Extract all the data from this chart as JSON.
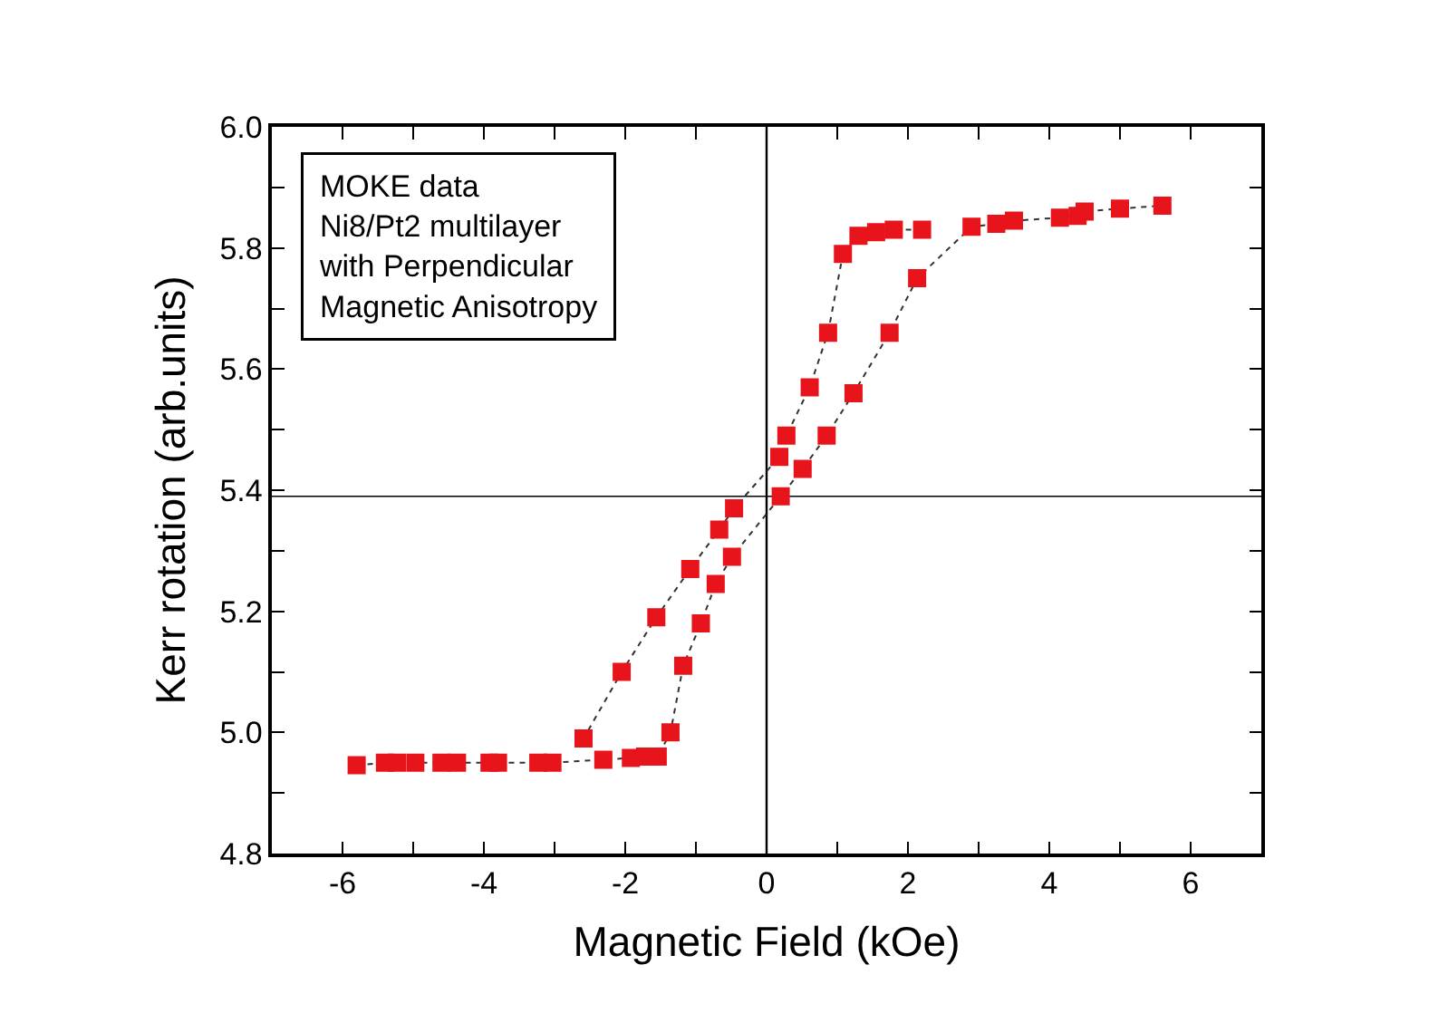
{
  "chart_data": {
    "type": "line",
    "xlabel": "Magnetic Field (kOe)",
    "ylabel": "Kerr rotation (arb.units)",
    "annotations": [
      "MOKE data\nNi8/Pt2 multilayer\nwith Perpendicular\nMagnetic Anisotropy"
    ],
    "series": [
      {
        "color": "#e8141b",
        "x": [
          -5.8,
          -5.4,
          -5.23,
          -4.97,
          -4.6,
          -4.38,
          -3.92,
          -3.8,
          -3.23,
          -3.03,
          -2.31,
          -1.92,
          -1.72,
          -1.54,
          -1.36,
          -1.18,
          -0.93,
          -0.72,
          -0.49,
          0.2,
          0.51,
          0.85,
          1.23,
          1.74,
          2.13,
          2.9,
          3.25,
          3.5,
          4.15,
          4.4,
          4.5,
          5.0,
          5.6
        ],
        "values": [
          4.946,
          4.95,
          4.95,
          4.95,
          4.95,
          4.95,
          4.95,
          4.95,
          4.95,
          4.95,
          4.955,
          4.958,
          4.96,
          4.96,
          5.0,
          5.11,
          5.18,
          5.245,
          5.29,
          5.39,
          5.435,
          5.49,
          5.56,
          5.66,
          5.75,
          5.835,
          5.84,
          5.845,
          5.85,
          5.853,
          5.86,
          5.865,
          5.87
        ]
      },
      {
        "color": "#e8141b",
        "x": [
          2.2,
          1.8,
          1.55,
          1.3,
          1.08,
          0.87,
          0.61,
          0.28,
          0.18,
          -0.46,
          -0.67,
          -1.08,
          -1.56,
          -2.05,
          -2.59
        ],
        "values": [
          5.83,
          5.83,
          5.826,
          5.82,
          5.79,
          5.66,
          5.57,
          5.49,
          5.455,
          5.37,
          5.335,
          5.27,
          5.19,
          5.1,
          4.99
        ]
      }
    ],
    "marker": "square",
    "line_style": "dotted",
    "grid": false,
    "xlim": [
      -7,
      7
    ],
    "xticks": [
      -6,
      {
        "value": -5,
        "label": null
      },
      -4,
      {
        "value": -3,
        "label": null
      },
      -2,
      {
        "value": -1,
        "label": null
      },
      0,
      {
        "value": 1,
        "label": null
      },
      2,
      {
        "value": 3,
        "label": null
      },
      4,
      {
        "value": 5,
        "label": null
      },
      6
    ],
    "ylim": [
      4.8,
      6.0
    ],
    "yticks": [
      {
        "value": 4.8,
        "label": "4.8"
      },
      {
        "value": 4.9,
        "label": null
      },
      {
        "value": 5.0,
        "label": "5.0"
      },
      {
        "value": 5.1,
        "label": null
      },
      {
        "value": 5.2,
        "label": "5.2"
      },
      {
        "value": 5.3,
        "label": null
      },
      {
        "value": 5.4,
        "label": "5.4"
      },
      {
        "value": 5.5,
        "label": null
      },
      {
        "value": 5.6,
        "label": "5.6"
      },
      {
        "value": 5.7,
        "label": null
      },
      {
        "value": 5.8,
        "label": "5.8"
      },
      {
        "value": 5.9,
        "label": null
      },
      {
        "value": 6.0,
        "label": "6.0"
      }
    ],
    "ref_lines": [
      {
        "axis": "y",
        "value": 5.39,
        "color": "#000000"
      },
      {
        "axis": "x",
        "value": 0,
        "color": "#000000"
      }
    ]
  }
}
